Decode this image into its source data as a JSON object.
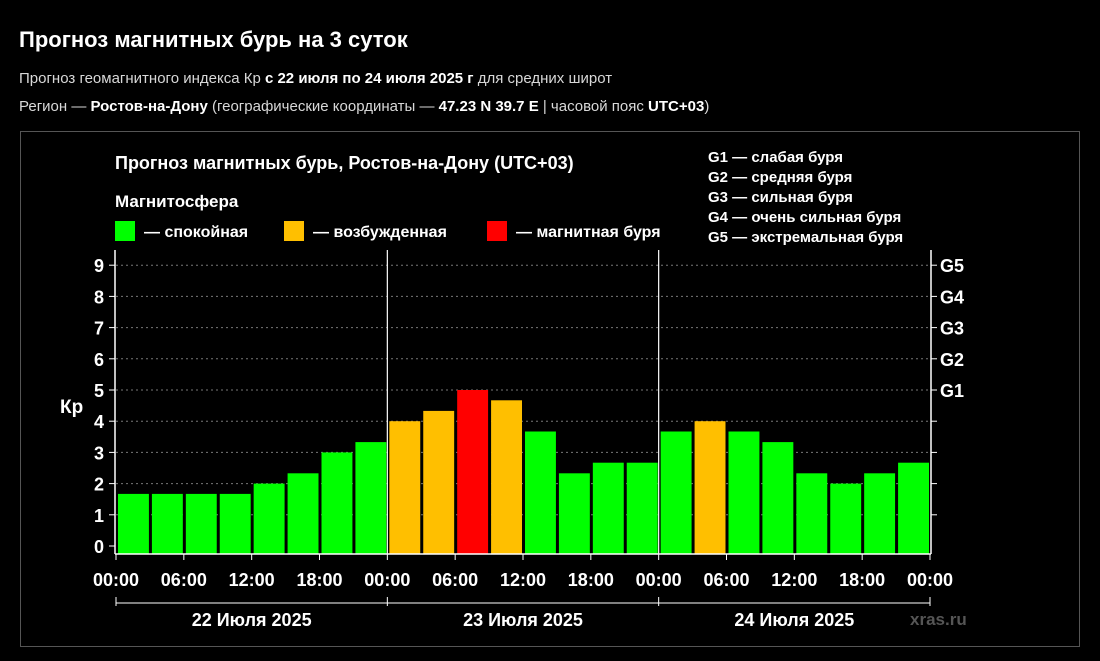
{
  "page": {
    "title": "Прогноз магнитных бурь на 3 суток",
    "subtitle": {
      "prefix": "Прогноз геомагнитного индекса Кр ",
      "period": "с 22 июля по 24 июля 2025 г",
      "suffix": " для средних широт"
    },
    "region": {
      "prefix": "Регион — ",
      "city": "Ростов-на-Дону",
      "coords_prefix": " (географические координаты — ",
      "coords": "47.23 N 39.7 E",
      "tz_prefix": " | часовой пояс ",
      "tz": "UTC+03",
      "tz_suffix": ")"
    }
  },
  "chart_data": {
    "type": "bar",
    "title": "Прогноз магнитных бурь, Ростов-на-Дону (UTC+03)",
    "ylabel": "Кр",
    "ylim": [
      0,
      9
    ],
    "yticks": [
      0,
      1,
      2,
      3,
      4,
      5,
      6,
      7,
      8,
      9
    ],
    "right_ticks": [
      {
        "value": 5,
        "label": "G1"
      },
      {
        "value": 6,
        "label": "G2"
      },
      {
        "value": 7,
        "label": "G3"
      },
      {
        "value": 8,
        "label": "G4"
      },
      {
        "value": 9,
        "label": "G5"
      }
    ],
    "grid": "horizontal dashed",
    "legend_title": "Магнитосфера",
    "legend": [
      {
        "label": "— спокойная",
        "color": "#00ff00"
      },
      {
        "label": "— возбужденная",
        "color": "#ffbf00"
      },
      {
        "label": "— магнитная буря",
        "color": "#ff0000"
      }
    ],
    "storm_scale": [
      "G1 — слабая буря",
      "G2 — средняя буря",
      "G3 — сильная буря",
      "G4 — очень сильная буря",
      "G5 — экстремальная буря"
    ],
    "xtick_labels": [
      "00:00",
      "06:00",
      "12:00",
      "18:00",
      "00:00",
      "06:00",
      "12:00",
      "18:00",
      "00:00",
      "06:00",
      "12:00",
      "18:00",
      "00:00"
    ],
    "days": [
      "22 Июля 2025",
      "23 Июля 2025",
      "24 Июля 2025"
    ],
    "values": [
      1.67,
      1.67,
      1.67,
      1.67,
      2.0,
      2.33,
      3.0,
      3.33,
      4.0,
      4.33,
      5.0,
      4.67,
      3.67,
      2.33,
      2.67,
      2.67,
      3.67,
      4.0,
      3.67,
      3.33,
      2.33,
      2.0,
      2.33,
      2.67
    ],
    "levels": [
      "quiet",
      "quiet",
      "quiet",
      "quiet",
      "quiet",
      "quiet",
      "quiet",
      "quiet",
      "active",
      "active",
      "storm",
      "active",
      "quiet",
      "quiet",
      "quiet",
      "quiet",
      "quiet",
      "active",
      "quiet",
      "quiet",
      "quiet",
      "quiet",
      "quiet",
      "quiet"
    ],
    "colors": {
      "quiet": "#00ff00",
      "active": "#ffbf00",
      "storm": "#ff0000"
    },
    "watermark": "xras.ru"
  }
}
